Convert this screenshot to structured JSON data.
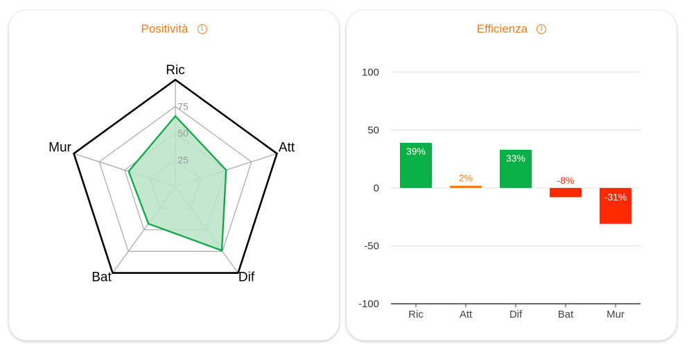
{
  "radar": {
    "title": "Positività",
    "info_icon": "info-icon",
    "chart_data": {
      "type": "radar",
      "axes": [
        "Ric",
        "Att",
        "Dif",
        "Bat",
        "Mur"
      ],
      "values": [
        66,
        50,
        74,
        43,
        46
      ],
      "rmax": 100,
      "ticks": [
        25,
        50,
        75
      ],
      "colors": {
        "fill": "#b9e4c6",
        "stroke": "#12a94a",
        "grid": "#a6a6a6",
        "outer": "#000000"
      }
    }
  },
  "efficiency": {
    "title": "Efficienza",
    "info_icon": "info-icon",
    "chart_data": {
      "type": "bar",
      "categories": [
        "Ric",
        "Att",
        "Dif",
        "Bat",
        "Mur"
      ],
      "values": [
        39,
        2,
        33,
        -8,
        -31
      ],
      "labels": [
        "39%",
        "2%",
        "33%",
        "-8%",
        "-31%"
      ],
      "colors": [
        "#0aaf45",
        "#f37e18",
        "#0aaf45",
        "#ff2a00",
        "#ff2a00"
      ],
      "ylim": [
        -100,
        100
      ],
      "yticks": [
        -100,
        -50,
        0,
        50,
        100
      ],
      "grid": true
    }
  }
}
